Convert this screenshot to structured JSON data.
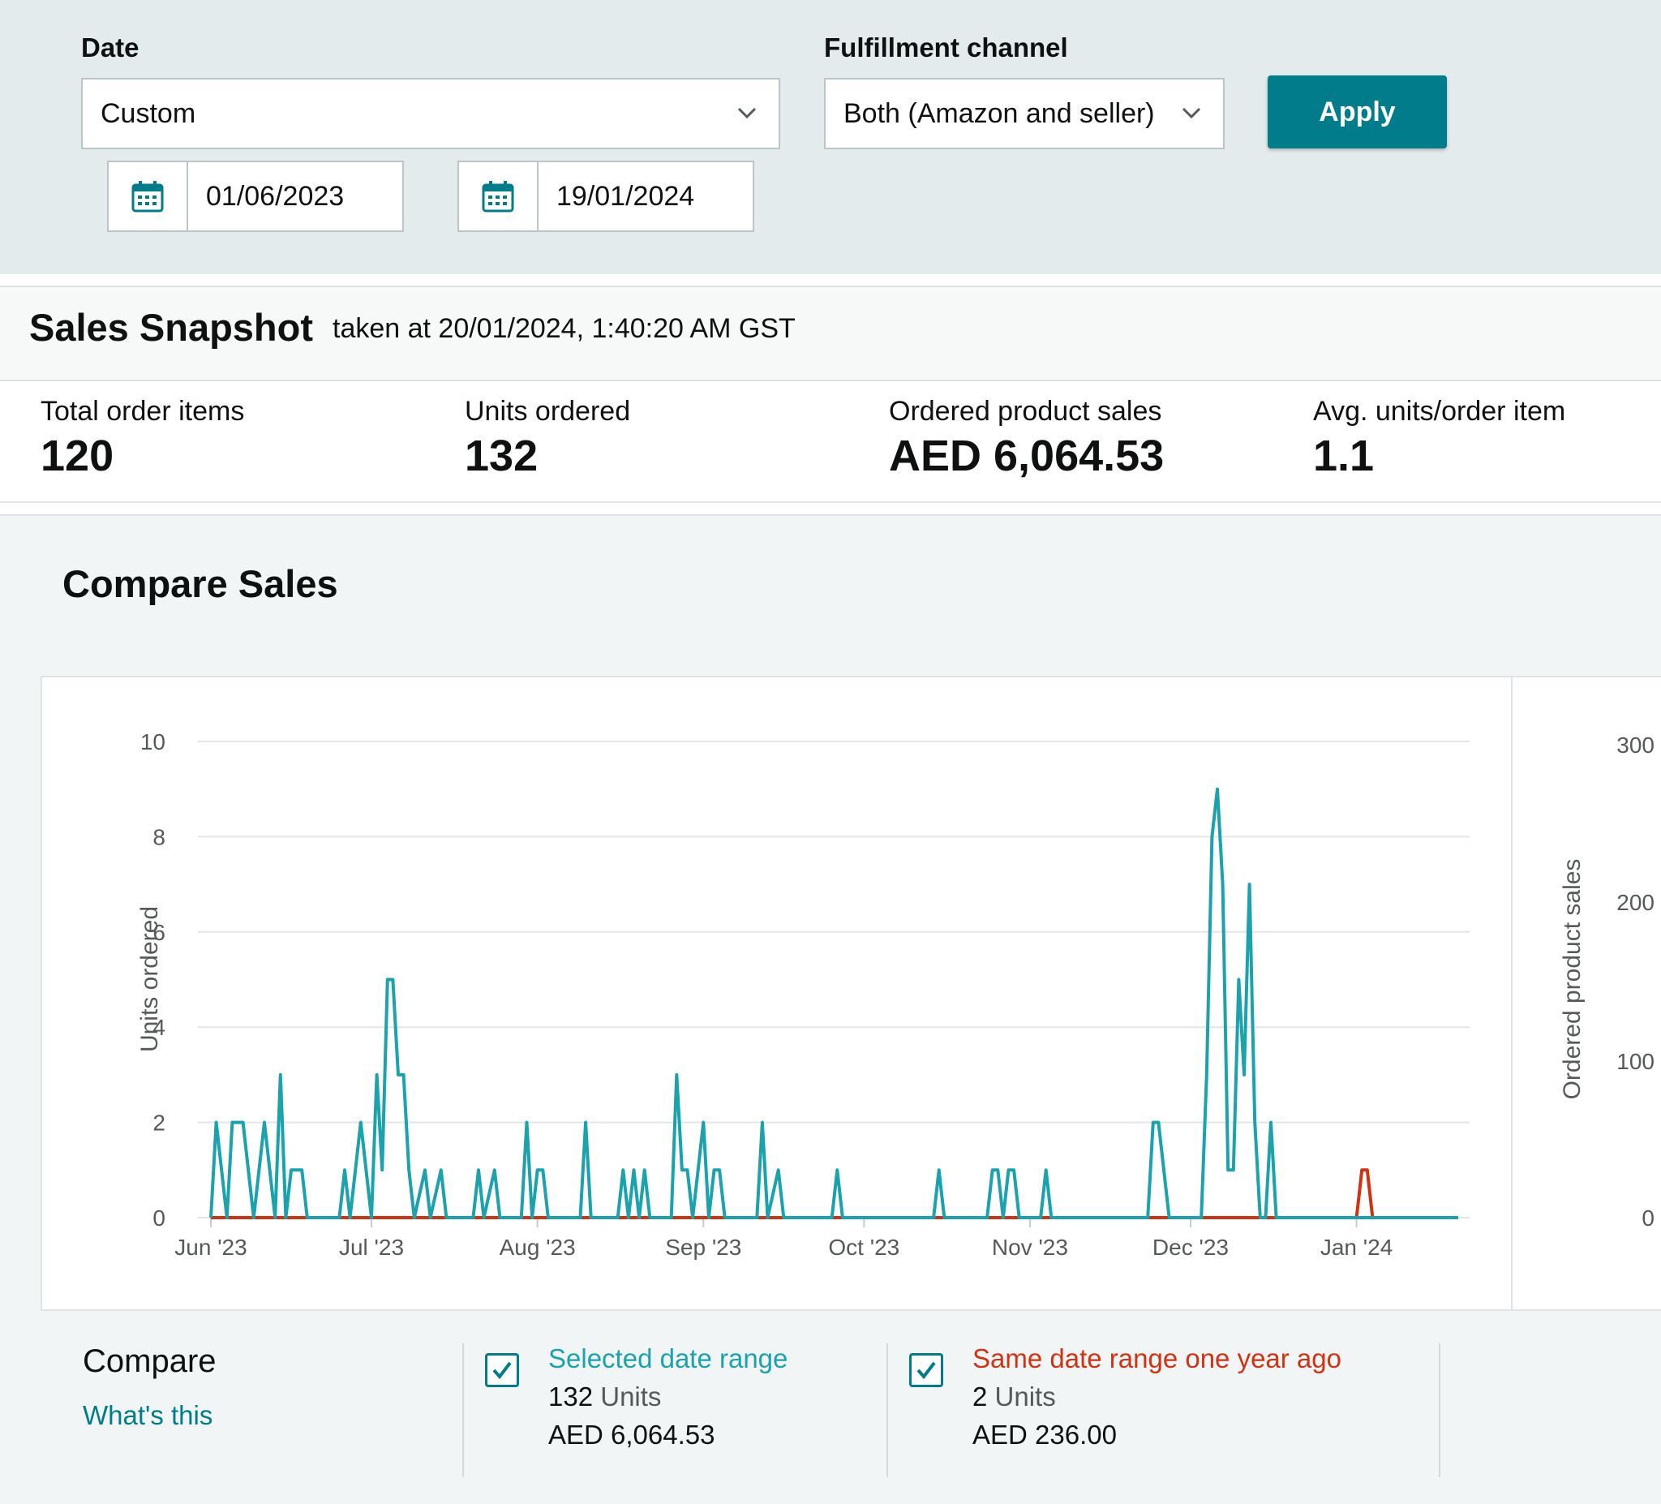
{
  "filters": {
    "date_label": "Date",
    "date_select_value": "Custom",
    "start_date": "01/06/2023",
    "end_date": "19/01/2024",
    "channel_label": "Fulfillment channel",
    "channel_select_value": "Both (Amazon and seller)",
    "apply_label": "Apply"
  },
  "snapshot": {
    "title": "Sales Snapshot",
    "taken_at": "taken at 20/01/2024, 1:40:20 AM GST",
    "metrics": [
      {
        "label": "Total order items",
        "value": "120"
      },
      {
        "label": "Units ordered",
        "value": "132"
      },
      {
        "label": "Ordered product sales",
        "value": "AED 6,064.53"
      },
      {
        "label": "Avg. units/order item",
        "value": "1.1"
      }
    ]
  },
  "compare": {
    "title": "Compare Sales",
    "compare_label": "Compare",
    "whats_this": "What's this",
    "selected": {
      "name": "Selected date range",
      "units_value": "132",
      "units_word": "Units",
      "sales": "AED 6,064.53",
      "color": "#1aa3ad",
      "checked": true
    },
    "year_ago": {
      "name": "Same date range one year ago",
      "units_value": "2",
      "units_word": "Units",
      "sales": "AED 236.00",
      "color": "#d13212",
      "checked": true
    }
  },
  "chart_data": {
    "type": "line",
    "ylabel": "Units ordered",
    "y2label": "Ordered product sales",
    "ylim": [
      0,
      10
    ],
    "yticks": [
      0,
      2,
      4,
      6,
      8,
      10
    ],
    "y2ticks": [
      "0",
      "100",
      "200",
      "300"
    ],
    "x_tick_labels": [
      "Jun '23",
      "Jul '23",
      "Aug '23",
      "Sep '23",
      "Oct '23",
      "Nov '23",
      "Dec '23",
      "Jan '24"
    ],
    "x_tick_days": [
      0,
      30,
      61,
      92,
      122,
      153,
      183,
      214
    ],
    "x_max_day": 233,
    "series": [
      {
        "name": "Selected date range",
        "color": "#1aa3ad",
        "points": [
          [
            0,
            0
          ],
          [
            1,
            2
          ],
          [
            3,
            0
          ],
          [
            4,
            2
          ],
          [
            6,
            2
          ],
          [
            8,
            0
          ],
          [
            10,
            2
          ],
          [
            12,
            0
          ],
          [
            13,
            3
          ],
          [
            14,
            0
          ],
          [
            15,
            1
          ],
          [
            17,
            1
          ],
          [
            18,
            0
          ],
          [
            24,
            0
          ],
          [
            25,
            1
          ],
          [
            26,
            0
          ],
          [
            28,
            2
          ],
          [
            30,
            0
          ],
          [
            31,
            3
          ],
          [
            32,
            1
          ],
          [
            33,
            5
          ],
          [
            34,
            5
          ],
          [
            35,
            3
          ],
          [
            36,
            3
          ],
          [
            37,
            1
          ],
          [
            38,
            0
          ],
          [
            40,
            1
          ],
          [
            41,
            0
          ],
          [
            43,
            1
          ],
          [
            44,
            0
          ],
          [
            49,
            0
          ],
          [
            50,
            1
          ],
          [
            51,
            0
          ],
          [
            53,
            1
          ],
          [
            54,
            0
          ],
          [
            58,
            0
          ],
          [
            59,
            2
          ],
          [
            60,
            0
          ],
          [
            61,
            1
          ],
          [
            62,
            1
          ],
          [
            63,
            0
          ],
          [
            69,
            0
          ],
          [
            70,
            2
          ],
          [
            71,
            0
          ],
          [
            76,
            0
          ],
          [
            77,
            1
          ],
          [
            78,
            0
          ],
          [
            79,
            1
          ],
          [
            80,
            0
          ],
          [
            81,
            1
          ],
          [
            82,
            0
          ],
          [
            86,
            0
          ],
          [
            87,
            3
          ],
          [
            88,
            1
          ],
          [
            89,
            1
          ],
          [
            90,
            0
          ],
          [
            92,
            2
          ],
          [
            93,
            0
          ],
          [
            94,
            1
          ],
          [
            95,
            1
          ],
          [
            96,
            0
          ],
          [
            102,
            0
          ],
          [
            103,
            2
          ],
          [
            104,
            0
          ],
          [
            106,
            1
          ],
          [
            107,
            0
          ],
          [
            116,
            0
          ],
          [
            117,
            1
          ],
          [
            118,
            0
          ],
          [
            135,
            0
          ],
          [
            136,
            1
          ],
          [
            137,
            0
          ],
          [
            145,
            0
          ],
          [
            146,
            1
          ],
          [
            147,
            1
          ],
          [
            148,
            0
          ],
          [
            149,
            1
          ],
          [
            150,
            1
          ],
          [
            151,
            0
          ],
          [
            155,
            0
          ],
          [
            156,
            1
          ],
          [
            157,
            0
          ],
          [
            175,
            0
          ],
          [
            176,
            2
          ],
          [
            177,
            2
          ],
          [
            179,
            0
          ],
          [
            185,
            0
          ],
          [
            186,
            3
          ],
          [
            187,
            8
          ],
          [
            188,
            9
          ],
          [
            189,
            7
          ],
          [
            190,
            1
          ],
          [
            191,
            1
          ],
          [
            192,
            5
          ],
          [
            193,
            3
          ],
          [
            194,
            7
          ],
          [
            195,
            2
          ],
          [
            196,
            0
          ],
          [
            197,
            0
          ],
          [
            198,
            2
          ],
          [
            199,
            0
          ],
          [
            233,
            0
          ]
        ]
      },
      {
        "name": "Same date range one year ago",
        "color": "#d13212",
        "points": [
          [
            0,
            0
          ],
          [
            214,
            0
          ],
          [
            215,
            1
          ],
          [
            216,
            1
          ],
          [
            217,
            0
          ],
          [
            233,
            0
          ]
        ]
      }
    ]
  }
}
